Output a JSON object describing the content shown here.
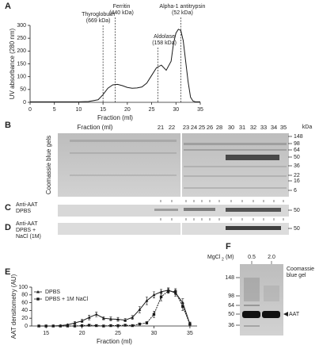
{
  "chart_data": [
    {
      "type": "line",
      "letter": "A",
      "ylabel": "UV absorbance (280 nm)",
      "xlabel": "Fraction (ml)",
      "x": [
        0,
        5,
        10,
        12,
        14,
        15,
        16,
        17,
        18,
        19,
        20,
        21,
        22,
        23,
        24,
        25,
        26,
        27,
        28,
        29,
        29.5,
        30,
        30.5,
        31,
        31.5,
        32,
        32.5,
        33,
        33.5,
        34,
        35
      ],
      "values": [
        2,
        2,
        2,
        3,
        10,
        30,
        55,
        68,
        70,
        65,
        58,
        55,
        56,
        60,
        75,
        105,
        135,
        145,
        125,
        160,
        230,
        270,
        285,
        280,
        240,
        160,
        80,
        20,
        5,
        2,
        2
      ],
      "color": "#1a1a1a",
      "xlim": [
        0,
        35
      ],
      "xticks": [
        0,
        5,
        10,
        15,
        20,
        25,
        30,
        35
      ],
      "ylim": [
        0,
        300
      ],
      "yticks": [
        0,
        50,
        100,
        150,
        200,
        250,
        300
      ],
      "annotations": [
        {
          "x": 15,
          "lines": [
            "Thyroglobulin",
            "(669 kDa)"
          ]
        },
        {
          "x": 17.5,
          "lines": [
            "Ferritin",
            "(440 kDa)"
          ]
        },
        {
          "x": 26.3,
          "lines": [
            "Aldolase",
            "(158 kDa)"
          ]
        },
        {
          "x": 31,
          "lines": [
            "Alpha-1 antitrypsin",
            "(52 kDa)"
          ]
        }
      ]
    },
    {
      "type": "line",
      "letter": "E",
      "ylabel": "AAT densitometry (AU)",
      "xlabel": "Fraction (ml)",
      "x": [
        14,
        15,
        16,
        17,
        18,
        19,
        20,
        21,
        22,
        23,
        24,
        25,
        26,
        27,
        28,
        29,
        30,
        31,
        32,
        33,
        34,
        35
      ],
      "series": [
        {
          "name": "DPBS",
          "color": "#1a1a1a",
          "marker": "triangle",
          "values": [
            0,
            0,
            0,
            1,
            3,
            8,
            13,
            22,
            30,
            20,
            18,
            17,
            15,
            22,
            42,
            65,
            80,
            88,
            92,
            85,
            60,
            5
          ],
          "errors": [
            0,
            0,
            0,
            1,
            2,
            3,
            4,
            6,
            6,
            4,
            5,
            5,
            4,
            5,
            8,
            10,
            8,
            6,
            6,
            8,
            10,
            5
          ]
        },
        {
          "name": "DPBS + 1M NaCl",
          "color": "#1a1a1a",
          "marker": "square",
          "values": [
            0,
            0,
            0,
            0,
            0,
            0,
            1,
            2,
            1,
            0,
            1,
            1,
            2,
            1,
            5,
            8,
            30,
            75,
            90,
            88,
            50,
            5
          ],
          "errors": [
            0,
            0,
            0,
            0,
            0,
            1,
            1,
            1,
            1,
            1,
            1,
            1,
            1,
            1,
            2,
            3,
            8,
            10,
            6,
            8,
            10,
            4
          ]
        }
      ],
      "xlim": [
        13,
        36
      ],
      "xticks": [
        15,
        20,
        25,
        30,
        35
      ],
      "ylim": [
        0,
        100
      ],
      "yticks": [
        0,
        20,
        40,
        60,
        80,
        100
      ],
      "legend": "upper left"
    }
  ],
  "gels": {
    "B": {
      "letter": "B",
      "side_label": "Coomassie blue gels",
      "fraction_label": "Fraction (ml)",
      "unit": "kDa",
      "lanes": [
        "21",
        "22",
        "23",
        "24",
        "25",
        "26",
        "28",
        "30",
        "31",
        "32",
        "33",
        "34",
        "35"
      ],
      "markers": [
        "148",
        "98",
        "64",
        "50",
        "36",
        "22",
        "16",
        "6"
      ]
    },
    "C": {
      "letter": "C",
      "label": [
        "Anti-AAT",
        "DPBS"
      ],
      "marker": "50"
    },
    "D": {
      "letter": "D",
      "label": [
        "Anti-AAT",
        "DPBS +",
        "NaCl (1M)"
      ],
      "marker": "50"
    },
    "F": {
      "letter": "F",
      "header": "MgCl",
      "header_sub": "2",
      "header_unit": " (M)",
      "lanes": [
        "0.5",
        "2.0"
      ],
      "markers": [
        "148",
        "98",
        "64",
        "50",
        "36"
      ],
      "side_label": [
        "Coomassie",
        "blue gel"
      ],
      "band_label": "AAT"
    }
  }
}
